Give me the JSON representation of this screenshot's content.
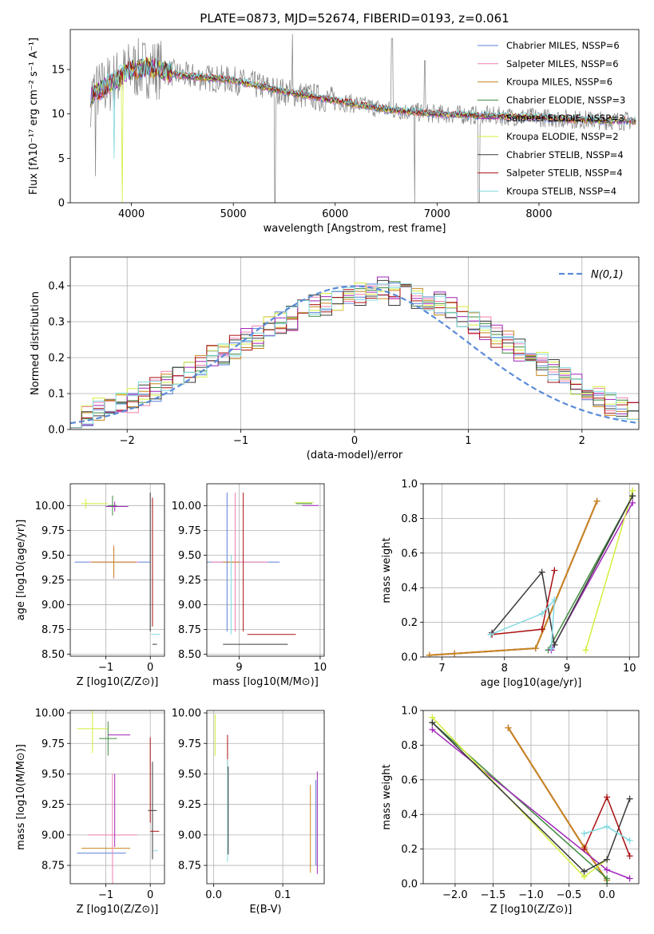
{
  "colors": [
    "#5b7fd6",
    "#f07fb0",
    "#c8861e",
    "#3f8a3f",
    "#a025b8",
    "#d4ee3c",
    "#3a3a3a",
    "#aa1010",
    "#80d8e0"
  ],
  "spectrum_color": "#808080",
  "chart_data": [
    {
      "id": "spectrum",
      "type": "line",
      "title": "PLATE=0873, MJD=52674, FIBERID=0193, z=0.061",
      "xlabel": "wavelength [Angstrom, rest frame]",
      "ylabel": "Flux [fλ10⁻¹⁷ erg cm⁻² s⁻¹ A⁻¹]",
      "xlim": [
        3400,
        8980
      ],
      "ylim": [
        0,
        19.5
      ],
      "xticks": [
        4000,
        5000,
        6000,
        7000,
        8000
      ],
      "yticks": [
        0,
        5,
        10,
        15
      ],
      "legend_position": "top-right",
      "series": [
        {
          "name": "Chabrier MILES, NSSP=6"
        },
        {
          "name": "Salpeter MILES, NSSP=6"
        },
        {
          "name": "Kroupa MILES, NSSP=6"
        },
        {
          "name": "Chabrier ELODIE, NSSP=3"
        },
        {
          "name": "Salpeter ELODIE, NSSP=3"
        },
        {
          "name": "Kroupa ELODIE, NSSP=2"
        },
        {
          "name": "Chabrier STELIB, NSSP=4"
        },
        {
          "name": "Salpeter STELIB, NSSP=4"
        },
        {
          "name": "Kroupa STELIB, NSSP=4"
        }
      ],
      "continuum": {
        "x": [
          3600,
          3800,
          4000,
          4200,
          4500,
          5000,
          5500,
          6000,
          6500,
          7000,
          7500,
          8000,
          8500,
          8950
        ],
        "y": [
          12,
          13.5,
          15,
          15.2,
          14.3,
          13.8,
          12.5,
          11.5,
          10.5,
          10,
          9.8,
          9.6,
          9.3,
          9.2
        ]
      }
    },
    {
      "id": "residuals",
      "type": "step",
      "xlabel": "(data-model)/error",
      "ylabel": "Normed distribution",
      "xlim": [
        -2.5,
        2.5
      ],
      "ylim": [
        0,
        0.48
      ],
      "xticks": [
        -2,
        -1,
        0,
        1,
        2
      ],
      "yticks": [
        0.0,
        0.1,
        0.2,
        0.3,
        0.4
      ],
      "legend": "N(0,1)",
      "reference_color": "#5b8bd8",
      "bin_width": 0.1,
      "histogram": [
        0.03,
        0.04,
        0.06,
        0.07,
        0.07,
        0.08,
        0.1,
        0.11,
        0.13,
        0.14,
        0.16,
        0.18,
        0.2,
        0.21,
        0.23,
        0.25,
        0.26,
        0.28,
        0.3,
        0.31,
        0.33,
        0.34,
        0.35,
        0.36,
        0.37,
        0.38,
        0.38,
        0.39,
        0.38,
        0.38,
        0.37,
        0.36,
        0.35,
        0.34,
        0.32,
        0.3,
        0.28,
        0.26,
        0.24,
        0.22,
        0.2,
        0.18,
        0.16,
        0.14,
        0.12,
        0.1,
        0.09,
        0.07,
        0.06,
        0.05
      ]
    },
    {
      "id": "age-vs-Z",
      "type": "errorbar",
      "xlabel": "Z [log10(Z/Z⊙)]",
      "ylabel": "age  [log10(age/yr)]",
      "xlim": [
        -1.8,
        0.32
      ],
      "ylim": [
        8.48,
        10.22
      ],
      "xticks": [
        -1,
        0
      ],
      "yticks": [
        8.5,
        8.75,
        9.0,
        9.25,
        9.5,
        9.75,
        10.0
      ],
      "points": [
        {
          "s": 0,
          "x": -0.85,
          "y": 9.43,
          "ex": 0.85,
          "ey": 0.0
        },
        {
          "s": 1,
          "x": -0.82,
          "y": 9.43,
          "ex": 0.55,
          "ey": 0.17
        },
        {
          "s": 2,
          "x": -0.82,
          "y": 9.43,
          "ex": 0.5,
          "ey": 0.15
        },
        {
          "s": 3,
          "x": -0.85,
          "y": 10.0,
          "ex": 0.1,
          "ey": 0.1
        },
        {
          "s": 4,
          "x": -0.55,
          "y": 9.99,
          "ex": 0.0,
          "ey": 0.0
        },
        {
          "s": 4,
          "x": -0.8,
          "y": 9.99,
          "ex": 0.2,
          "ey": 0.05
        },
        {
          "s": 5,
          "x": -1.45,
          "y": 10.02,
          "ex": 0.1,
          "ey": 0.05
        },
        {
          "s": 5,
          "x": -1.2,
          "y": 10.02,
          "ex": 0.25,
          "ey": 0.0
        },
        {
          "s": 6,
          "x": 0.1,
          "y": 8.6,
          "ex": 0.05,
          "ey": 0.0
        },
        {
          "s": 6,
          "x": 0.0,
          "y": 9.43,
          "ex": 0.0,
          "ey": 0.7
        },
        {
          "s": 7,
          "x": 0.05,
          "y": 9.43,
          "ex": 0.0,
          "ey": 0.65
        },
        {
          "s": 8,
          "x": 0.12,
          "y": 8.7,
          "ex": 0.1,
          "ey": 0.0
        }
      ]
    },
    {
      "id": "age-vs-mass",
      "type": "errorbar",
      "xlabel": "mass [log10(M/M⊙)]",
      "ylabel": "",
      "xlim": [
        8.6,
        10.05
      ],
      "ylim": [
        8.48,
        10.22
      ],
      "xticks": [
        9,
        10
      ],
      "yticks": [
        8.5,
        8.75,
        9.0,
        9.25,
        9.5,
        9.75,
        10.0
      ],
      "points": [
        {
          "s": 0,
          "x": 9.0,
          "y": 9.43,
          "ex": 0.5,
          "ey": 0.0
        },
        {
          "s": 1,
          "x": 9.0,
          "y": 9.43,
          "ex": 0.35,
          "ey": 0.0
        },
        {
          "s": 2,
          "x": 8.9,
          "y": 9.43,
          "ex": 0.1,
          "ey": 0.0
        },
        {
          "s": 0,
          "x": 8.85,
          "y": 9.43,
          "ex": 0.0,
          "ey": 0.7
        },
        {
          "s": 1,
          "x": 8.95,
          "y": 9.43,
          "ex": 0.0,
          "ey": 0.7
        },
        {
          "s": 7,
          "x": 9.05,
          "y": 9.43,
          "ex": 0.0,
          "ey": 0.7
        },
        {
          "s": 6,
          "x": 9.2,
          "y": 8.6,
          "ex": 0.4,
          "ey": 0.0
        },
        {
          "s": 7,
          "x": 9.4,
          "y": 8.7,
          "ex": 0.3,
          "ey": 0.0
        },
        {
          "s": 8,
          "x": 8.9,
          "y": 9.1,
          "ex": 0.0,
          "ey": 0.4
        },
        {
          "s": 5,
          "x": 9.8,
          "y": 10.03,
          "ex": 0.12,
          "ey": 0.0
        },
        {
          "s": 3,
          "x": 9.8,
          "y": 10.02,
          "ex": 0.1,
          "ey": 0.0
        },
        {
          "s": 4,
          "x": 9.88,
          "y": 10.0,
          "ex": 0.1,
          "ey": 0.0
        }
      ]
    },
    {
      "id": "weight-vs-age",
      "type": "line",
      "xlabel": "age  [log10(age/yr)]",
      "ylabel": "mass weight",
      "xlim": [
        6.7,
        10.15
      ],
      "ylim": [
        0,
        1.0
      ],
      "xticks": [
        7,
        8,
        9,
        10
      ],
      "yticks": [
        0.0,
        0.2,
        0.4,
        0.6,
        0.8,
        1.0
      ],
      "series": [
        {
          "s": 0,
          "x": [
            6.8,
            7.2,
            8.5,
            9.48
          ],
          "y": [
            0.01,
            0.02,
            0.05,
            0.9
          ]
        },
        {
          "s": 1,
          "x": [
            6.8,
            7.2,
            8.5,
            9.48
          ],
          "y": [
            0.01,
            0.02,
            0.05,
            0.9
          ]
        },
        {
          "s": 2,
          "x": [
            6.8,
            7.2,
            8.5,
            9.48
          ],
          "y": [
            0.01,
            0.02,
            0.05,
            0.9
          ]
        },
        {
          "s": 3,
          "x": [
            8.7,
            10.05
          ],
          "y": [
            0.04,
            0.93
          ]
        },
        {
          "s": 4,
          "x": [
            8.75,
            10.05
          ],
          "y": [
            0.04,
            0.89
          ]
        },
        {
          "s": 5,
          "x": [
            9.3,
            10.05
          ],
          "y": [
            0.04,
            0.96
          ]
        },
        {
          "s": 6,
          "x": [
            7.8,
            8.6,
            8.8,
            10.05
          ],
          "y": [
            0.14,
            0.49,
            0.07,
            0.93
          ]
        },
        {
          "s": 7,
          "x": [
            7.8,
            8.6,
            8.8,
            8.6
          ],
          "y": [
            0.13,
            0.16,
            0.5,
            0.16
          ]
        },
        {
          "s": 8,
          "x": [
            7.78,
            8.6,
            8.8,
            8.75
          ],
          "y": [
            0.13,
            0.25,
            0.33,
            0.05
          ]
        }
      ]
    },
    {
      "id": "mass-vs-Z",
      "type": "errorbar",
      "xlabel": "Z [log10(Z/Z⊙)]",
      "ylabel": "mass [log10(M/M⊙)]",
      "xlim": [
        -1.8,
        0.32
      ],
      "ylim": [
        8.6,
        10.02
      ],
      "xticks": [
        -1,
        0
      ],
      "yticks": [
        8.75,
        9.0,
        9.25,
        9.5,
        9.75,
        10.0
      ],
      "points": [
        {
          "s": 0,
          "x": -1.1,
          "y": 8.85,
          "ex": 0.55,
          "ey": 0.0
        },
        {
          "s": 1,
          "x": -0.85,
          "y": 9.0,
          "ex": 0.55,
          "ey": 0.0
        },
        {
          "s": 2,
          "x": -1.0,
          "y": 8.89,
          "ex": 0.55,
          "ey": 0.0
        },
        {
          "s": 1,
          "x": -0.85,
          "y": 9.0,
          "ex": 0.0,
          "ey": 0.5
        },
        {
          "s": 4,
          "x": -0.8,
          "y": 9.2,
          "ex": 0.0,
          "ey": 0.3
        },
        {
          "s": 5,
          "x": -1.3,
          "y": 9.87,
          "ex": 0.35,
          "ey": 0.2
        },
        {
          "s": 3,
          "x": -0.95,
          "y": 9.79,
          "ex": 0.2,
          "ey": 0.14
        },
        {
          "s": 4,
          "x": -0.7,
          "y": 9.82,
          "ex": 0.25,
          "ey": 0.0
        },
        {
          "s": 6,
          "x": 0.05,
          "y": 9.2,
          "ex": 0.1,
          "ey": 0.4
        },
        {
          "s": 7,
          "x": 0.0,
          "y": 9.45,
          "ex": 0.0,
          "ey": 0.35
        },
        {
          "s": 7,
          "x": 0.1,
          "y": 9.03,
          "ex": 0.1,
          "ey": 0.0
        },
        {
          "s": 8,
          "x": 0.12,
          "y": 8.87,
          "ex": 0.05,
          "ey": 0.0
        }
      ]
    },
    {
      "id": "mass-vs-EBV",
      "type": "errorbar",
      "xlabel": "E(B-V)",
      "ylabel": "",
      "xlim": [
        -0.01,
        0.16
      ],
      "ylim": [
        8.6,
        10.02
      ],
      "xticks": [
        0.0,
        0.1
      ],
      "yticks": [
        8.75,
        9.0,
        9.25,
        9.5,
        9.75,
        10.0
      ],
      "points": [
        {
          "s": 5,
          "x": 0.002,
          "y": 9.82,
          "ex": 0.0,
          "ey": 0.17
        },
        {
          "s": 7,
          "x": 0.02,
          "y": 9.67,
          "ex": 0.0,
          "ey": 0.15
        },
        {
          "s": 8,
          "x": 0.02,
          "y": 9.2,
          "ex": 0.0,
          "ey": 0.42
        },
        {
          "s": 6,
          "x": 0.021,
          "y": 9.2,
          "ex": 0.0,
          "ey": 0.36
        },
        {
          "s": 2,
          "x": 0.14,
          "y": 9.05,
          "ex": 0.0,
          "ey": 0.36
        },
        {
          "s": 4,
          "x": 0.15,
          "y": 9.1,
          "ex": 0.0,
          "ey": 0.42
        },
        {
          "s": 0,
          "x": 0.148,
          "y": 9.1,
          "ex": 0.0,
          "ey": 0.35
        }
      ]
    },
    {
      "id": "weight-vs-Z",
      "type": "line",
      "xlabel": "Z [log10(Z/Z⊙)]",
      "ylabel": "mass weight",
      "xlim": [
        -2.42,
        0.42
      ],
      "ylim": [
        0,
        1.0
      ],
      "xticks": [
        -2.0,
        -1.5,
        -1.0,
        -0.5,
        0.0
      ],
      "yticks": [
        0.0,
        0.2,
        0.4,
        0.6,
        0.8,
        1.0
      ],
      "series": [
        {
          "s": 0,
          "x": [
            -1.3,
            -0.3,
            0.0
          ],
          "y": [
            0.9,
            0.21,
            0.02
          ]
        },
        {
          "s": 1,
          "x": [
            -1.3,
            -0.3,
            0.0
          ],
          "y": [
            0.9,
            0.21,
            0.02
          ]
        },
        {
          "s": 2,
          "x": [
            -1.3,
            -0.3,
            0.0
          ],
          "y": [
            0.9,
            0.21,
            0.02
          ]
        },
        {
          "s": 3,
          "x": [
            -2.3,
            0.0,
            0.0
          ],
          "y": [
            0.93,
            0.03,
            0.0
          ]
        },
        {
          "s": 4,
          "x": [
            -2.3,
            0.0,
            0.3
          ],
          "y": [
            0.89,
            0.08,
            0.03
          ]
        },
        {
          "s": 5,
          "x": [
            -2.3,
            -0.3,
            0.0
          ],
          "y": [
            0.96,
            0.04,
            0.14
          ]
        },
        {
          "s": 6,
          "x": [
            -2.3,
            -0.3,
            0.0,
            0.3
          ],
          "y": [
            0.93,
            0.07,
            0.14,
            0.49
          ]
        },
        {
          "s": 7,
          "x": [
            -0.3,
            0.0,
            0.3
          ],
          "y": [
            0.2,
            0.5,
            0.16
          ]
        },
        {
          "s": 8,
          "x": [
            -0.3,
            0.0,
            0.3
          ],
          "y": [
            0.29,
            0.33,
            0.25
          ]
        }
      ]
    }
  ]
}
